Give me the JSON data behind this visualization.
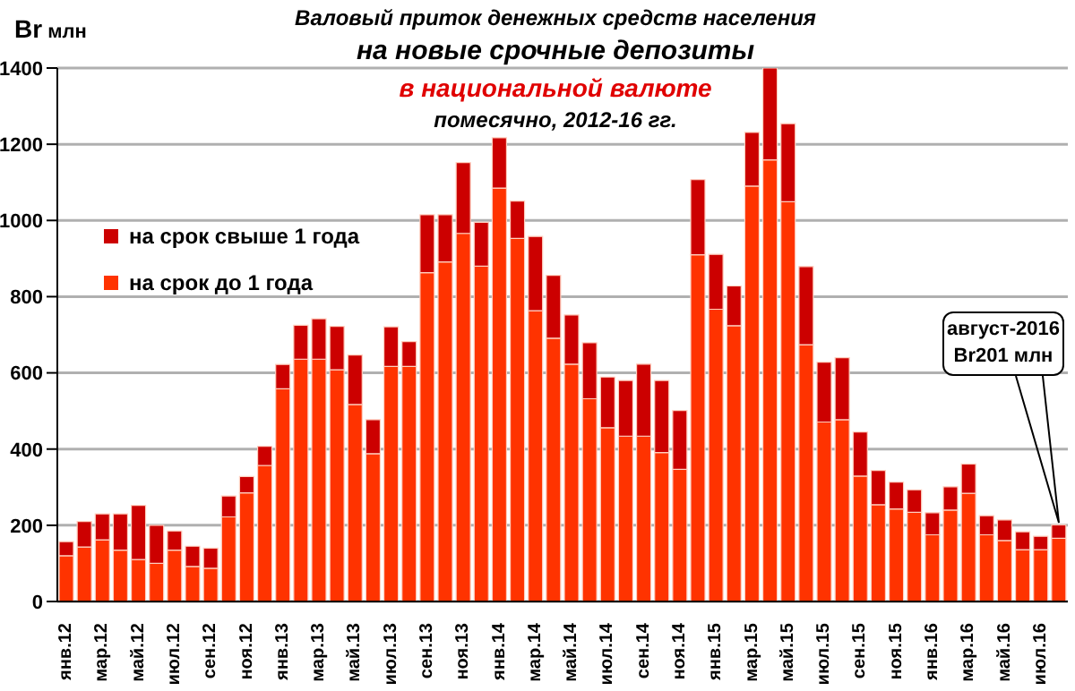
{
  "chart_data": {
    "type": "bar",
    "stacked": true,
    "title": "Валовый  приток денежных средств населения\nна новые срочные депозиты",
    "subtitle": "в национальной  валюте\nпомесячно, 2012-16  гг.",
    "ylabel": "Br млн",
    "categories": [
      "янв.12",
      null,
      "мар.12",
      null,
      "май.12",
      null,
      "июл.12",
      null,
      "сен.12",
      null,
      "ноя.12",
      null,
      "янв.13",
      null,
      "мар.13",
      null,
      "май.13",
      null,
      "июл.13",
      null,
      "сен.13",
      null,
      "ноя.13",
      null,
      "янв.14",
      null,
      "мар.14",
      null,
      "май.14",
      null,
      "июл.14",
      null,
      "сен.14",
      null,
      "ноя.14",
      null,
      "янв.15",
      null,
      "мар.15",
      null,
      "май.15",
      null,
      "июл.15",
      null,
      "сен.15",
      null,
      "ноя.15",
      null,
      "янв.16",
      null,
      "мар.16",
      null,
      "май.16",
      null,
      "июл.16",
      null
    ],
    "series": [
      {
        "name": "на срок до 1 года",
        "color": "#ff3300",
        "values": [
          120,
          143,
          162,
          135,
          110,
          100,
          135,
          92,
          87,
          222,
          285,
          357,
          558,
          636,
          636,
          608,
          517,
          388,
          617,
          617,
          863,
          891,
          966,
          880,
          1085,
          953,
          763,
          691,
          623,
          532,
          456,
          434,
          434,
          391,
          347,
          910,
          767,
          724,
          1090,
          1159,
          1049,
          674,
          471,
          477,
          329,
          254,
          243,
          234,
          175,
          240,
          284,
          175,
          160,
          136,
          136,
          166
        ]
      },
      {
        "name": "на срок свыше 1 года",
        "color": "#cc0000",
        "values": [
          37,
          67,
          68,
          95,
          142,
          100,
          50,
          53,
          53,
          55,
          43,
          50,
          64,
          89,
          106,
          114,
          130,
          89,
          104,
          65,
          152,
          124,
          186,
          115,
          132,
          98,
          195,
          165,
          129,
          147,
          133,
          146,
          189,
          189,
          154,
          197,
          144,
          104,
          141,
          241,
          205,
          205,
          157,
          163,
          116,
          90,
          70,
          59,
          58,
          61,
          77,
          50,
          54,
          47,
          35,
          35
        ]
      }
    ],
    "ylim": [
      0,
      1400
    ],
    "yticks": [
      0,
      200,
      400,
      600,
      800,
      1000,
      1200,
      1400
    ],
    "grid": "y",
    "legend": "top left",
    "annotations": [
      "август-2016\nBr201 млн"
    ]
  }
}
